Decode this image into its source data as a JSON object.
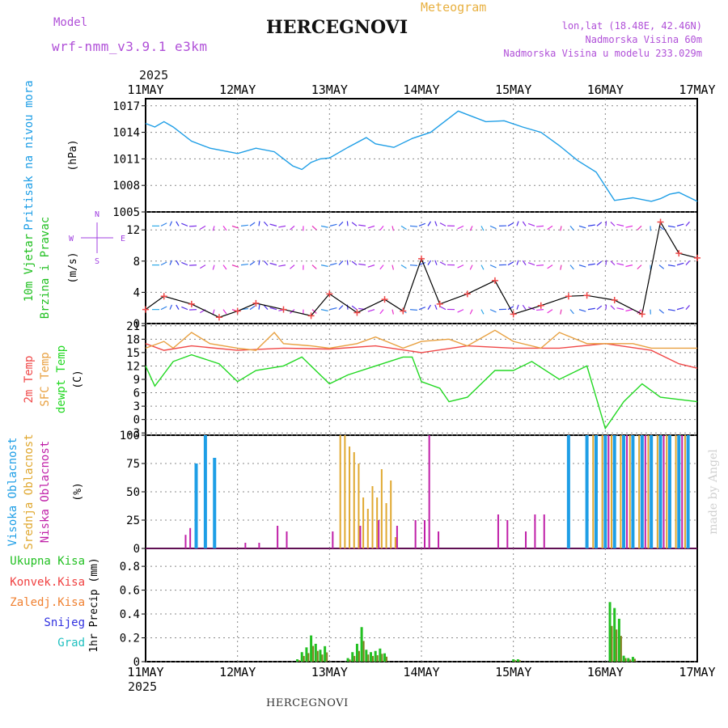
{
  "header": {
    "model_label": "Model",
    "model_name": "wrf-nmm_v3.9.1 e3km",
    "title": "HERCEGNOVI",
    "subtitle": "Meteogram",
    "lonlat": "lon,lat (18.48E, 42.46N)",
    "elevation": "Nadmorska Visina 60m",
    "model_elevation": "Nadmorska Visina u modelu 233.029m",
    "year_top": "2025",
    "year_bottom": "2025",
    "footer_title": "HERCEGNOVI",
    "watermark": "made by Angel"
  },
  "colors": {
    "pressure": "#1e9ee6",
    "wind_label": "#22c022",
    "wind_dir_label": "#a040e0",
    "t2m": "#f04848",
    "tsfc": "#e8a040",
    "dewpt": "#22d822",
    "cloud_high": "#1e9ee6",
    "cloud_mid": "#e0a830",
    "cloud_low": "#c020a8",
    "precip_total": "#22c022",
    "precip_conv": "#f04040",
    "precip_strat": "#f08030",
    "snow": "#3030e0",
    "grad": "#20c0c0"
  },
  "chart_data": [
    {
      "type": "line",
      "panel": "pressure",
      "title": "Pritisak na nivou mora",
      "ylabel": "(hPa)",
      "x_tick_labels": [
        "11MAY",
        "12MAY",
        "13MAY",
        "14MAY",
        "15MAY",
        "16MAY",
        "17MAY"
      ],
      "y_ticks": [
        "1005",
        "1008",
        "1011",
        "1014",
        "1017"
      ],
      "ylim": [
        1005,
        1017.8
      ],
      "xlim": [
        0,
        6
      ],
      "x": [
        0,
        0.1,
        0.2,
        0.3,
        0.5,
        0.7,
        0.9,
        1.0,
        1.2,
        1.4,
        1.6,
        1.7,
        1.8,
        1.9,
        2.0,
        2.2,
        2.4,
        2.5,
        2.7,
        2.9,
        3.1,
        3.2,
        3.4,
        3.5,
        3.7,
        3.9,
        4.1,
        4.3,
        4.5,
        4.7,
        4.9,
        5.1,
        5.3,
        5.5,
        5.6,
        5.7,
        5.8,
        6.0
      ],
      "values": [
        1015,
        1014.6,
        1015.2,
        1014.6,
        1013,
        1012.2,
        1011.8,
        1011.6,
        1012.2,
        1011.8,
        1010.2,
        1009.8,
        1010.6,
        1011,
        1011.1,
        1012.3,
        1013.4,
        1012.7,
        1012.3,
        1013.3,
        1014,
        1014.8,
        1016.4,
        1016,
        1015.2,
        1015.3,
        1014.6,
        1014,
        1012.5,
        1010.8,
        1009.5,
        1006.3,
        1006.6,
        1006.2,
        1006.5,
        1007,
        1007.2,
        1006.2
      ]
    },
    {
      "type": "line",
      "panel": "wind",
      "title": "10m Vjetar",
      "title2": "Brzina i Pravac",
      "ylabel": "(m/s)",
      "direction_legend": [
        "N",
        "W",
        "E",
        "S"
      ],
      "y_ticks": [
        "0",
        "4",
        "8",
        "12"
      ],
      "ylim": [
        0,
        14.3
      ],
      "x": [
        0,
        0.2,
        0.5,
        0.8,
        1.0,
        1.2,
        1.5,
        1.8,
        2.0,
        2.3,
        2.6,
        2.8,
        3.0,
        3.2,
        3.5,
        3.8,
        4.0,
        4.3,
        4.6,
        4.8,
        5.1,
        5.4,
        5.6,
        5.8,
        6.0
      ],
      "values": [
        1.8,
        3.5,
        2.5,
        0.8,
        1.6,
        2.6,
        1.8,
        1.0,
        3.8,
        1.4,
        3.1,
        1.6,
        8.3,
        2.5,
        3.8,
        5.5,
        1.2,
        2.3,
        3.5,
        3.6,
        3.0,
        1.2,
        13.0,
        9.0,
        8.4
      ],
      "barb_levels": [
        12.5,
        7.5,
        1.8
      ]
    },
    {
      "type": "line",
      "panel": "temperature",
      "series_labels": [
        "2m Temp",
        "SFC Temp",
        "dewpt Temp"
      ],
      "ylabel": "(C)",
      "y_ticks": [
        "-3",
        "0",
        "3",
        "6",
        "9",
        "12",
        "15",
        "18",
        "21"
      ],
      "ylim": [
        -3.5,
        21.5
      ],
      "series": [
        {
          "name": "2m Temp",
          "x": [
            0,
            0.2,
            0.5,
            1.0,
            1.5,
            2.0,
            2.5,
            3.0,
            3.5,
            4.0,
            4.5,
            5.0,
            5.5,
            5.8,
            6.0
          ],
          "values": [
            17,
            15.5,
            16.5,
            15.5,
            16,
            15.8,
            16.5,
            15,
            16.5,
            16,
            16,
            17,
            15.5,
            12.5,
            11.5
          ]
        },
        {
          "name": "SFC Temp",
          "x": [
            0,
            0.2,
            0.3,
            0.5,
            0.7,
            1.0,
            1.2,
            1.4,
            1.5,
            1.8,
            2.0,
            2.3,
            2.5,
            2.8,
            3.0,
            3.3,
            3.5,
            3.8,
            4.0,
            4.3,
            4.5,
            4.8,
            5.0,
            5.3,
            5.5,
            6.0
          ],
          "values": [
            16,
            17.5,
            16,
            19.5,
            17,
            16,
            15.5,
            19.5,
            17,
            16.5,
            16,
            17,
            18.5,
            16,
            17.5,
            18,
            16.5,
            20,
            17.5,
            16,
            19.5,
            17,
            17,
            17,
            16,
            16
          ]
        },
        {
          "name": "dewpt Temp",
          "x": [
            0,
            0.1,
            0.3,
            0.5,
            0.8,
            1.0,
            1.2,
            1.5,
            1.7,
            2.0,
            2.2,
            2.5,
            2.8,
            2.9,
            3.0,
            3.2,
            3.3,
            3.5,
            3.8,
            4.0,
            4.2,
            4.5,
            4.8,
            5.0,
            5.2,
            5.4,
            5.6,
            6.0
          ],
          "values": [
            12,
            7.5,
            13,
            14.5,
            12.5,
            8.5,
            11,
            12,
            14,
            8,
            10,
            12,
            14,
            14,
            8.5,
            7,
            4,
            5,
            11,
            11,
            13,
            9,
            12,
            -2,
            4,
            8,
            5,
            4
          ]
        }
      ]
    },
    {
      "type": "bar",
      "panel": "clouds",
      "series_labels": [
        "Visoka Oblacnost",
        "Srednja Oblacnost",
        "Niska Oblacnost"
      ],
      "ylabel": "(%)",
      "y_ticks": [
        "0",
        "25",
        "50",
        "75",
        "100"
      ],
      "ylim": [
        0,
        100
      ],
      "series": [
        {
          "name": "Visoka Oblacnost",
          "x": [
            0.55,
            0.65,
            0.75,
            4.6,
            4.8,
            4.9,
            5.0,
            5.1,
            5.2,
            5.3,
            5.4,
            5.5,
            5.6,
            5.7,
            5.8,
            5.9
          ],
          "values": [
            75,
            100,
            80,
            100,
            100,
            100,
            100,
            100,
            100,
            100,
            100,
            100,
            100,
            100,
            100,
            100
          ]
        },
        {
          "name": "Srednja Oblacnost",
          "x": [
            2.1,
            2.15,
            2.2,
            2.25,
            2.3,
            2.35,
            2.4,
            2.45,
            2.5,
            2.55,
            2.6,
            2.65,
            2.7,
            4.85,
            4.95,
            5.05,
            5.15,
            5.25,
            5.35,
            5.45,
            5.55,
            5.65,
            5.75,
            5.85
          ],
          "values": [
            100,
            100,
            90,
            85,
            75,
            45,
            35,
            55,
            45,
            70,
            40,
            60,
            10,
            100,
            100,
            100,
            100,
            100,
            100,
            100,
            100,
            100,
            100,
            100
          ]
        },
        {
          "name": "Niska Oblacnost",
          "x": [
            0.4,
            0.45,
            1.05,
            1.2,
            1.4,
            1.5,
            2.0,
            2.3,
            2.5,
            2.7,
            2.9,
            3.0,
            3.05,
            3.15,
            3.8,
            3.9,
            4.1,
            4.2,
            4.3,
            5.0,
            5.2,
            5.4,
            5.6,
            5.8
          ],
          "values": [
            12,
            18,
            5,
            5,
            20,
            15,
            15,
            20,
            25,
            20,
            25,
            25,
            100,
            15,
            30,
            25,
            15,
            30,
            30,
            100,
            100,
            100,
            100,
            100
          ]
        }
      ]
    },
    {
      "type": "bar",
      "panel": "precip",
      "series_labels": [
        "Ukupna Kisa",
        "Konvek.Kisa",
        "Zaledj.Kisa",
        "Snijeg",
        "Grad"
      ],
      "ylabel": "1hr Precip (mm)",
      "y_ticks": [
        "0",
        "0.2",
        "0.4",
        "0.6",
        "0.8"
      ],
      "ylim": [
        0,
        0.95
      ],
      "x": [
        1.65,
        1.7,
        1.75,
        1.8,
        1.85,
        1.9,
        1.95,
        2.2,
        2.25,
        2.3,
        2.35,
        2.4,
        2.45,
        2.5,
        2.55,
        2.6,
        4.0,
        4.05,
        5.05,
        5.1,
        5.15,
        5.2,
        5.25,
        5.3
      ],
      "values": [
        0.02,
        0.08,
        0.12,
        0.22,
        0.15,
        0.1,
        0.13,
        0.03,
        0.08,
        0.15,
        0.29,
        0.1,
        0.08,
        0.09,
        0.11,
        0.07,
        0.02,
        0.02,
        0.5,
        0.45,
        0.36,
        0.05,
        0.03,
        0.04
      ]
    }
  ]
}
